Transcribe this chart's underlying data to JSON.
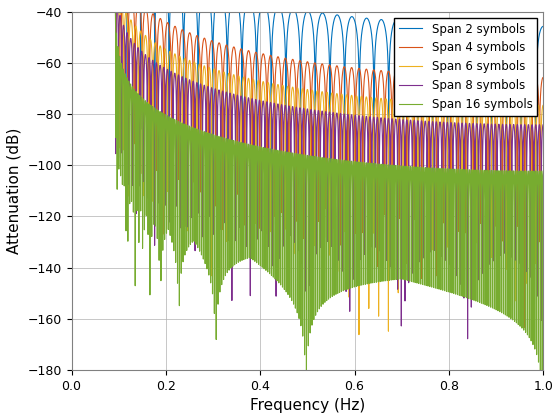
{
  "title": "",
  "xlabel": "Frequency (Hz)",
  "ylabel": "Attenuation (dB)",
  "xlim": [
    0,
    1
  ],
  "ylim": [
    -180,
    -40
  ],
  "yticks": [
    -180,
    -160,
    -140,
    -120,
    -100,
    -80,
    -60,
    -40
  ],
  "xticks": [
    0,
    0.2,
    0.4,
    0.6,
    0.8,
    1.0
  ],
  "spans": [
    2,
    4,
    6,
    8,
    16
  ],
  "colors": [
    "#0072BD",
    "#D95319",
    "#EDB120",
    "#7E2F8E",
    "#77AC30"
  ],
  "labels": [
    "Span 2 symbols",
    "Span 4 symbols",
    "Span 6 symbols",
    "Span 8 symbols",
    "Span 16 symbols"
  ],
  "rolloff": 0.5,
  "sps": 16,
  "linewidth": 0.8,
  "background_color": "#ffffff",
  "grid_color": "#b0b0b0"
}
